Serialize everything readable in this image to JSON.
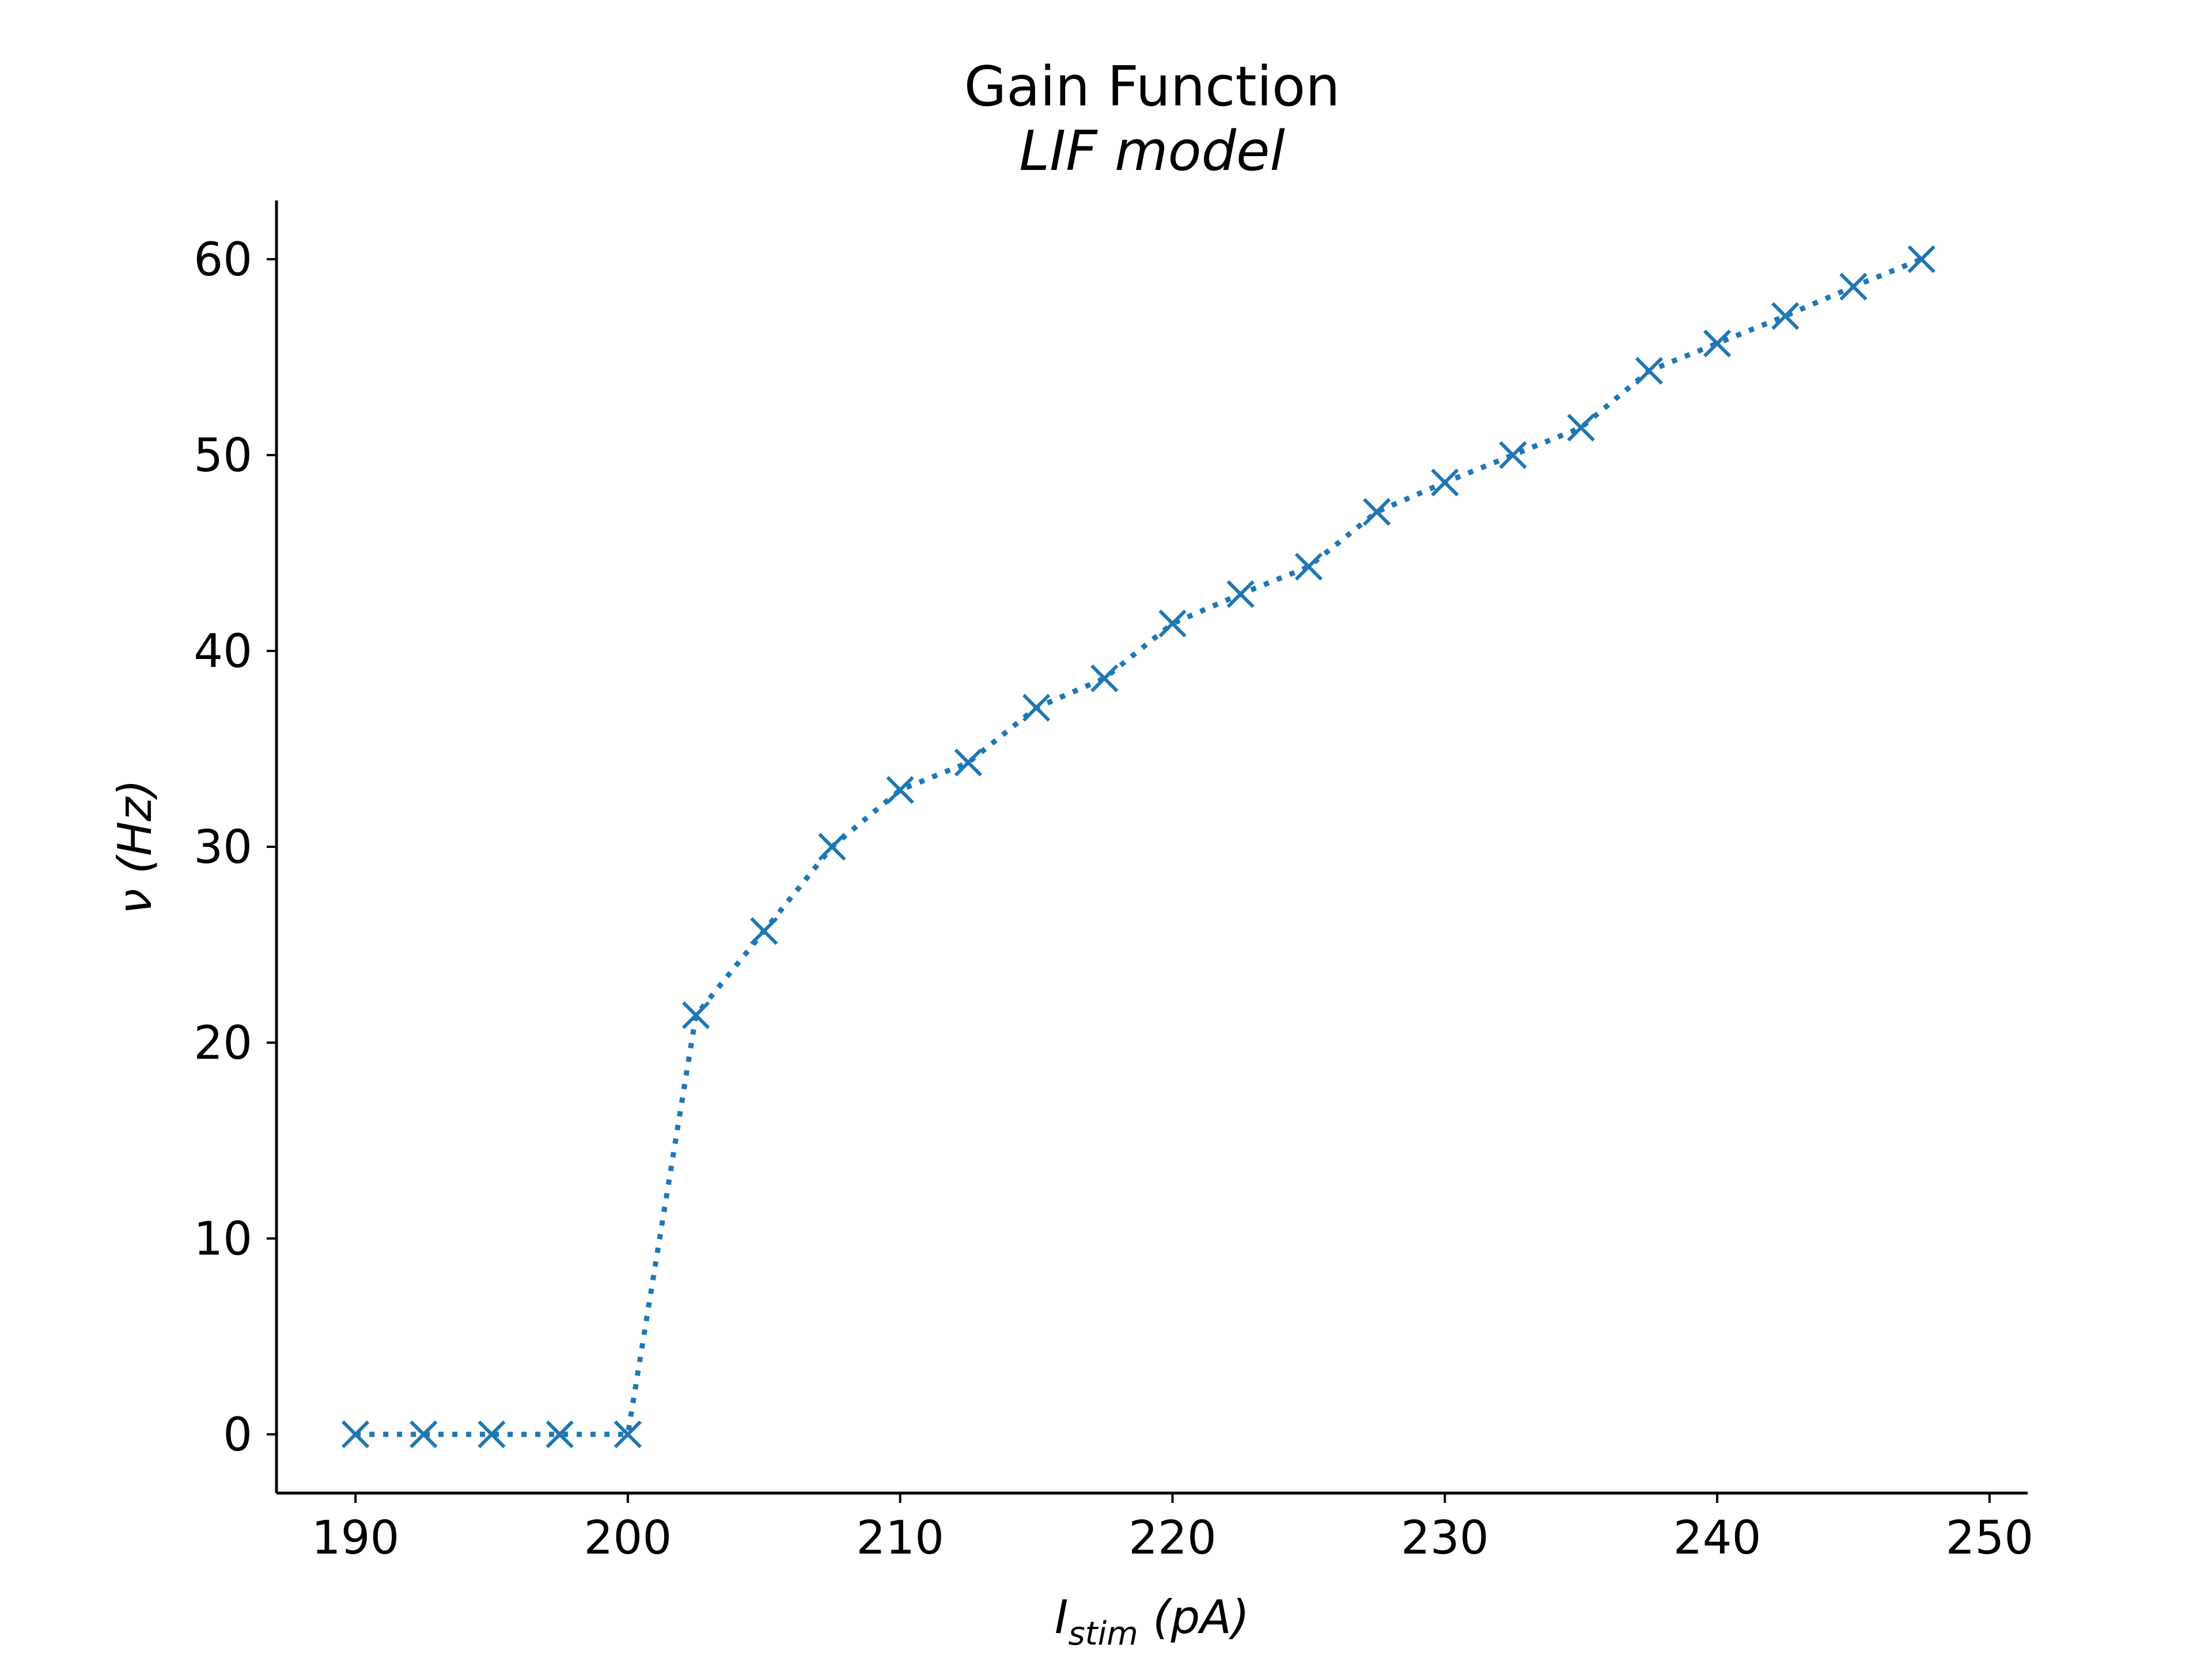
{
  "chart_data": {
    "type": "line",
    "title": "Gain Function",
    "subtitle": "LIF model",
    "xlabel": {
      "main": "I",
      "sub": "stim",
      "unit": " (pA)"
    },
    "ylabel": "ν (Hz)",
    "xlim": [
      187.1,
      251.4
    ],
    "ylim": [
      -3,
      63
    ],
    "x_ticks": [
      190,
      200,
      210,
      220,
      230,
      240,
      250
    ],
    "y_ticks": [
      0,
      10,
      20,
      30,
      40,
      50,
      60
    ],
    "grid": false,
    "marker": "x",
    "line_style": "dotted",
    "series": [
      {
        "color": "#1f77b4",
        "x": [
          190,
          192.5,
          195,
          197.5,
          200,
          202.5,
          205,
          207.5,
          210,
          212.5,
          215,
          217.5,
          220,
          222.5,
          225,
          227.5,
          230,
          232.5,
          235,
          237.5,
          240,
          242.5,
          245,
          247.5
        ],
        "y": [
          0,
          0,
          0,
          0,
          0,
          21.4,
          25.7,
          30.0,
          32.9,
          34.3,
          37.1,
          38.6,
          41.4,
          42.9,
          44.3,
          47.1,
          48.6,
          50.0,
          51.4,
          54.3,
          55.7,
          57.1,
          58.6,
          60.0
        ]
      }
    ]
  }
}
